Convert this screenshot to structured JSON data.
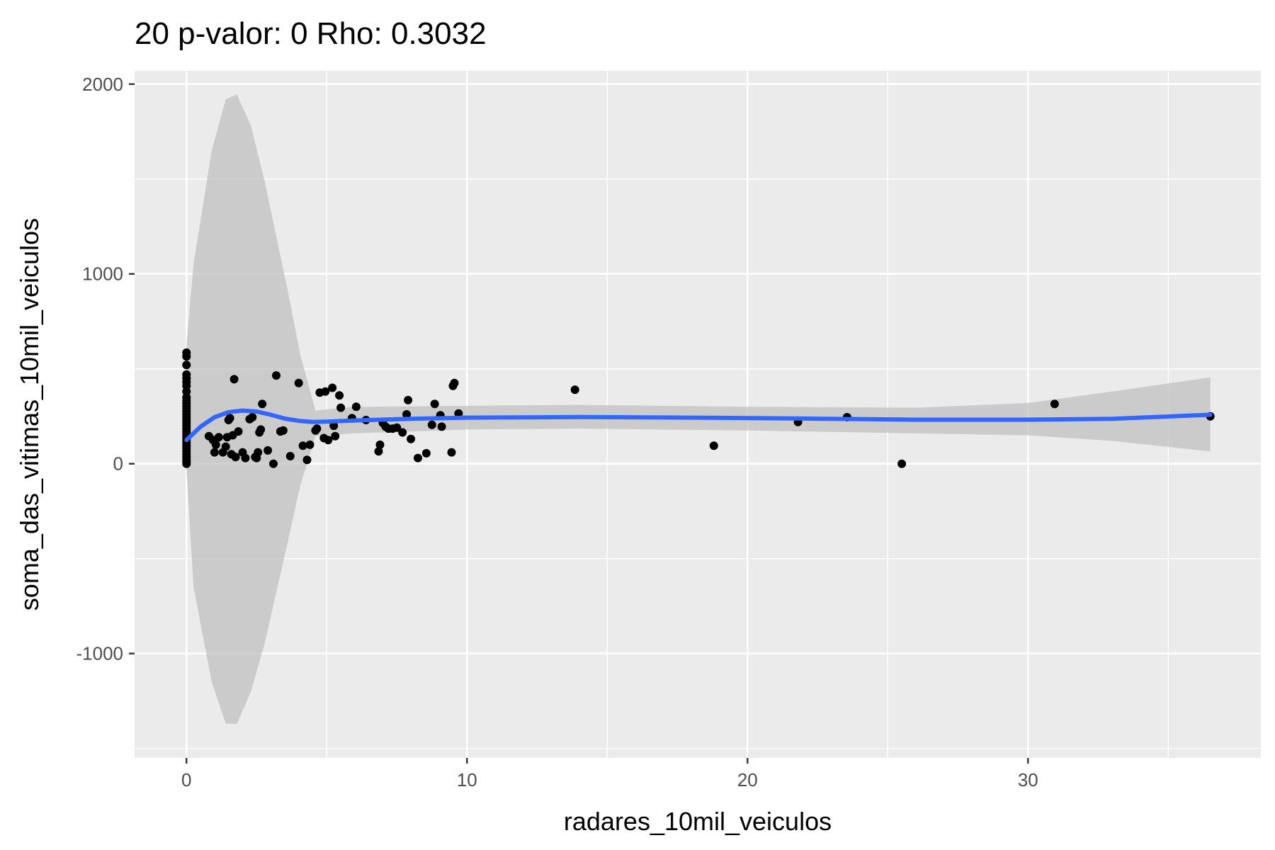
{
  "chart_data": {
    "type": "scatter",
    "title": "20 p-valor: 0 Rho: 0.3032",
    "xlabel": "radares_10mil_veiculos",
    "ylabel": "soma_das_vitimas_10mil_veiculos",
    "xlim": [
      -1.85,
      38.3
    ],
    "ylim": [
      -1550,
      2070
    ],
    "x_ticks": [
      0,
      10,
      20,
      30
    ],
    "y_ticks": [
      -1000,
      0,
      1000,
      2000
    ],
    "x_tick_labels": [
      "0",
      "10",
      "20",
      "30"
    ],
    "y_tick_labels": [
      "-1000",
      "0",
      "1000",
      "2000"
    ],
    "grid": true,
    "panel_background": "#EBEBEB",
    "grid_color": "#FFFFFF",
    "point_color": "#000000",
    "smooth_color": "#3366FF",
    "ribbon_color": "#BEBEBE",
    "points": [
      {
        "x": 0,
        "y": 585
      },
      {
        "x": 0,
        "y": 565
      },
      {
        "x": 0,
        "y": 520
      },
      {
        "x": 0,
        "y": 470
      },
      {
        "x": 0,
        "y": 450
      },
      {
        "x": 0,
        "y": 430
      },
      {
        "x": 0,
        "y": 410
      },
      {
        "x": 0,
        "y": 380
      },
      {
        "x": 0,
        "y": 350
      },
      {
        "x": 0,
        "y": 335
      },
      {
        "x": 0,
        "y": 320
      },
      {
        "x": 0,
        "y": 305
      },
      {
        "x": 0,
        "y": 290
      },
      {
        "x": 0,
        "y": 275
      },
      {
        "x": 0,
        "y": 260
      },
      {
        "x": 0,
        "y": 245
      },
      {
        "x": 0,
        "y": 230
      },
      {
        "x": 0,
        "y": 215
      },
      {
        "x": 0,
        "y": 200
      },
      {
        "x": 0,
        "y": 185
      },
      {
        "x": 0,
        "y": 170
      },
      {
        "x": 0,
        "y": 155
      },
      {
        "x": 0,
        "y": 140
      },
      {
        "x": 0,
        "y": 125
      },
      {
        "x": 0,
        "y": 110
      },
      {
        "x": 0,
        "y": 95
      },
      {
        "x": 0,
        "y": 80
      },
      {
        "x": 0,
        "y": 65
      },
      {
        "x": 0,
        "y": 50
      },
      {
        "x": 0,
        "y": 35
      },
      {
        "x": 0,
        "y": 20
      },
      {
        "x": 0,
        "y": 10
      },
      {
        "x": 0,
        "y": 0
      },
      {
        "x": 0.8,
        "y": 145
      },
      {
        "x": 0.95,
        "y": 125
      },
      {
        "x": 1.05,
        "y": 100
      },
      {
        "x": 1.0,
        "y": 60
      },
      {
        "x": 1.15,
        "y": 140
      },
      {
        "x": 1.3,
        "y": 60
      },
      {
        "x": 1.4,
        "y": 90
      },
      {
        "x": 1.45,
        "y": 140
      },
      {
        "x": 1.5,
        "y": 230
      },
      {
        "x": 1.55,
        "y": 240
      },
      {
        "x": 1.6,
        "y": 50
      },
      {
        "x": 1.65,
        "y": 150
      },
      {
        "x": 1.7,
        "y": 445
      },
      {
        "x": 1.75,
        "y": 35
      },
      {
        "x": 1.85,
        "y": 170
      },
      {
        "x": 2.0,
        "y": 60
      },
      {
        "x": 2.1,
        "y": 30
      },
      {
        "x": 2.25,
        "y": 235
      },
      {
        "x": 2.35,
        "y": 245
      },
      {
        "x": 2.45,
        "y": 35
      },
      {
        "x": 2.5,
        "y": 30
      },
      {
        "x": 2.55,
        "y": 60
      },
      {
        "x": 2.6,
        "y": 165
      },
      {
        "x": 2.65,
        "y": 180
      },
      {
        "x": 2.7,
        "y": 315
      },
      {
        "x": 2.9,
        "y": 70
      },
      {
        "x": 3.1,
        "y": 0
      },
      {
        "x": 3.2,
        "y": 465
      },
      {
        "x": 3.35,
        "y": 170
      },
      {
        "x": 3.45,
        "y": 175
      },
      {
        "x": 3.7,
        "y": 40
      },
      {
        "x": 4.0,
        "y": 425
      },
      {
        "x": 4.15,
        "y": 95
      },
      {
        "x": 4.3,
        "y": 20
      },
      {
        "x": 4.4,
        "y": 100
      },
      {
        "x": 4.6,
        "y": 175
      },
      {
        "x": 4.65,
        "y": 185
      },
      {
        "x": 4.75,
        "y": 375
      },
      {
        "x": 4.9,
        "y": 135
      },
      {
        "x": 4.95,
        "y": 380
      },
      {
        "x": 5.05,
        "y": 125
      },
      {
        "x": 5.2,
        "y": 400
      },
      {
        "x": 5.25,
        "y": 200
      },
      {
        "x": 5.3,
        "y": 145
      },
      {
        "x": 5.45,
        "y": 360
      },
      {
        "x": 5.5,
        "y": 295
      },
      {
        "x": 5.9,
        "y": 240
      },
      {
        "x": 6.05,
        "y": 300
      },
      {
        "x": 6.4,
        "y": 230
      },
      {
        "x": 6.85,
        "y": 65
      },
      {
        "x": 6.9,
        "y": 100
      },
      {
        "x": 7.0,
        "y": 215
      },
      {
        "x": 7.1,
        "y": 195
      },
      {
        "x": 7.2,
        "y": 185
      },
      {
        "x": 7.35,
        "y": 185
      },
      {
        "x": 7.5,
        "y": 190
      },
      {
        "x": 7.7,
        "y": 165
      },
      {
        "x": 7.85,
        "y": 260
      },
      {
        "x": 7.9,
        "y": 335
      },
      {
        "x": 8.0,
        "y": 130
      },
      {
        "x": 8.25,
        "y": 30
      },
      {
        "x": 8.55,
        "y": 55
      },
      {
        "x": 8.75,
        "y": 205
      },
      {
        "x": 8.85,
        "y": 315
      },
      {
        "x": 9.05,
        "y": 255
      },
      {
        "x": 9.1,
        "y": 195
      },
      {
        "x": 9.45,
        "y": 60
      },
      {
        "x": 9.5,
        "y": 410
      },
      {
        "x": 9.55,
        "y": 425
      },
      {
        "x": 9.7,
        "y": 265
      },
      {
        "x": 13.85,
        "y": 390
      },
      {
        "x": 18.8,
        "y": 95
      },
      {
        "x": 21.8,
        "y": 220
      },
      {
        "x": 23.55,
        "y": 245
      },
      {
        "x": 25.5,
        "y": 0
      },
      {
        "x": 30.95,
        "y": 315
      },
      {
        "x": 36.5,
        "y": 250
      }
    ],
    "smooth_line": [
      {
        "x": 0,
        "y": 125
      },
      {
        "x": 0.5,
        "y": 195
      },
      {
        "x": 1.0,
        "y": 245
      },
      {
        "x": 1.5,
        "y": 272
      },
      {
        "x": 2.0,
        "y": 280
      },
      {
        "x": 2.5,
        "y": 275
      },
      {
        "x": 3.0,
        "y": 258
      },
      {
        "x": 3.5,
        "y": 238
      },
      {
        "x": 4.0,
        "y": 226
      },
      {
        "x": 4.5,
        "y": 220
      },
      {
        "x": 5.0,
        "y": 222
      },
      {
        "x": 6.0,
        "y": 228
      },
      {
        "x": 8.0,
        "y": 237
      },
      {
        "x": 10.0,
        "y": 243
      },
      {
        "x": 14.0,
        "y": 246
      },
      {
        "x": 18.0,
        "y": 243
      },
      {
        "x": 22.0,
        "y": 238
      },
      {
        "x": 26.0,
        "y": 232
      },
      {
        "x": 30.0,
        "y": 232
      },
      {
        "x": 33.0,
        "y": 237
      },
      {
        "x": 36.5,
        "y": 258
      }
    ],
    "confidence_band": [
      {
        "x": 0,
        "lower": -30,
        "upper": 630
      },
      {
        "x": 0.25,
        "lower": -650,
        "upper": 1050
      },
      {
        "x": 0.9,
        "lower": -1150,
        "upper": 1650
      },
      {
        "x": 1.4,
        "lower": -1370,
        "upper": 1920
      },
      {
        "x": 1.8,
        "lower": -1370,
        "upper": 1945
      },
      {
        "x": 2.3,
        "lower": -1200,
        "upper": 1780
      },
      {
        "x": 2.8,
        "lower": -940,
        "upper": 1480
      },
      {
        "x": 3.6,
        "lower": -420,
        "upper": 920
      },
      {
        "x": 4.05,
        "lower": -120,
        "upper": 580
      },
      {
        "x": 4.6,
        "lower": 145,
        "upper": 280
      },
      {
        "x": 6.0,
        "lower": 160,
        "upper": 300
      },
      {
        "x": 10.0,
        "lower": 180,
        "upper": 305
      },
      {
        "x": 14.0,
        "lower": 185,
        "upper": 310
      },
      {
        "x": 20.0,
        "lower": 175,
        "upper": 300
      },
      {
        "x": 26.0,
        "lower": 160,
        "upper": 295
      },
      {
        "x": 30.0,
        "lower": 150,
        "upper": 320
      },
      {
        "x": 33.0,
        "lower": 120,
        "upper": 380
      },
      {
        "x": 36.5,
        "lower": 65,
        "upper": 455
      }
    ]
  }
}
